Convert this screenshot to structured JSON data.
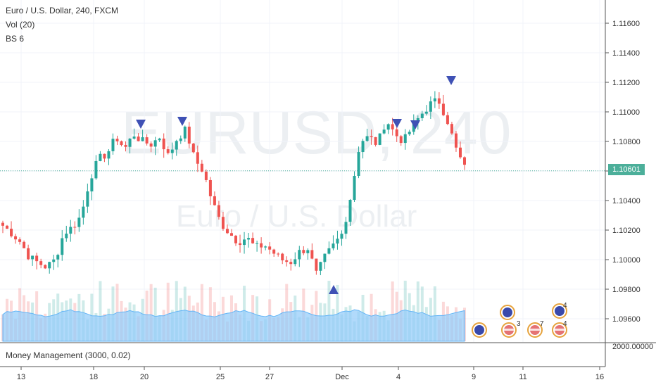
{
  "header": {
    "symbol_line": "Euro / U.S. Dollar, 240, FXCM",
    "volume_indicator": "Vol (20)",
    "bs_indicator": "BS 6"
  },
  "watermark": {
    "ticker": "EURUSD, 240",
    "name": "Euro / U.S. Dollar"
  },
  "price_axis": {
    "ticks": [
      "1.11600",
      "1.11400",
      "1.11200",
      "1.11000",
      "1.10800",
      "1.10600",
      "1.10400",
      "1.10200",
      "1.10000",
      "1.09800",
      "1.09600"
    ],
    "last_price": "1.10601",
    "last_price_color": "#4caf9a"
  },
  "lower_pane": {
    "label": "Money Management (3000, 0.02)",
    "axis_value": "2000.00000"
  },
  "time_axis": {
    "labels": [
      "13",
      "18",
      "20",
      "25",
      "27",
      "Dec",
      "4",
      "9",
      "11",
      "16"
    ]
  },
  "event_badges": {
    "counts": [
      "4",
      "3",
      "7",
      "4"
    ]
  },
  "colors": {
    "up": "#26a69a",
    "down": "#ef5350",
    "signal": "#3f51b5",
    "volume_ma": "#90caf9"
  },
  "chart_data": {
    "type": "candlestick",
    "symbol": "EURUSD",
    "timeframe": "240",
    "x_labels": [
      "13",
      "18",
      "20",
      "25",
      "27",
      "Dec",
      "4",
      "9",
      "11",
      "16"
    ],
    "ylim": [
      1.0952,
      1.1172
    ],
    "last_price": 1.10601,
    "approx_close_path": [
      1.1023,
      1.1018,
      1.1012,
      1.1002,
      1.0998,
      1.0995,
      1.1,
      1.1018,
      1.1022,
      1.103,
      1.1055,
      1.1068,
      1.1072,
      1.1083,
      1.1075,
      1.1085,
      1.108,
      1.1078,
      1.1083,
      1.107,
      1.1082,
      1.1088,
      1.1068,
      1.106,
      1.104,
      1.1025,
      1.1018,
      1.1012,
      1.1015,
      1.1008,
      1.101,
      1.1005,
      1.1,
      1.0998,
      1.1005,
      1.1008,
      1.099,
      1.1002,
      1.101,
      1.1018,
      1.1045,
      1.108,
      1.1083,
      1.1078,
      1.1095,
      1.1085,
      1.108,
      1.109,
      1.1098,
      1.1105,
      1.1108,
      1.1095,
      1.1075,
      1.1062
    ],
    "signals": {
      "sell": [
        "20",
        "22",
        "Dec 4",
        "Dec 5",
        "Dec 6"
      ],
      "buy": [
        "Nov 29"
      ]
    }
  }
}
